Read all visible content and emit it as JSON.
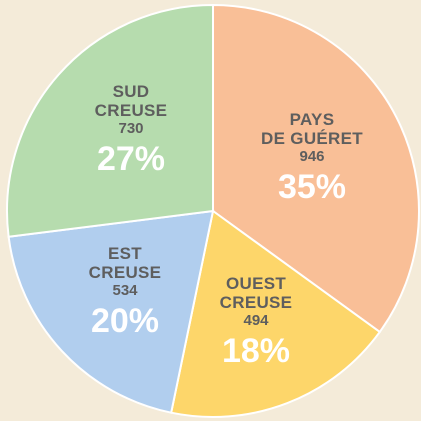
{
  "chart_data": {
    "type": "pie",
    "categories": [
      "PAYS\nDE GUÉRET",
      "OUEST\nCREUSE",
      "EST\nCREUSE",
      "SUD\nCREUSE"
    ],
    "values": [
      946,
      494,
      534,
      730
    ],
    "percent_labels": [
      "35%",
      "18%",
      "20%",
      "27%"
    ],
    "colors": [
      "#f9bf97",
      "#fdd66a",
      "#b1ceee",
      "#b6dcae"
    ]
  }
}
